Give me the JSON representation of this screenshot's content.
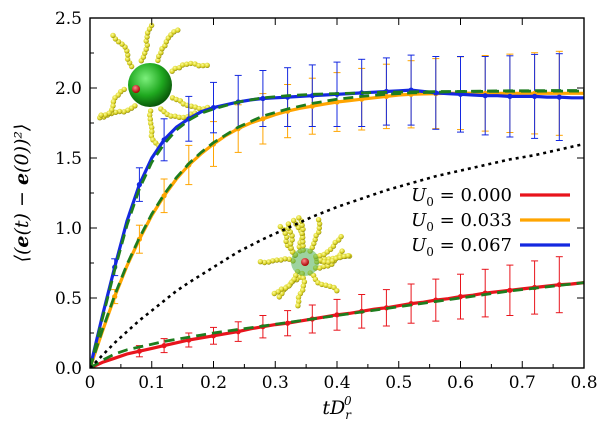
{
  "chart_data": {
    "type": "line",
    "xlabel": "tD_r^0",
    "ylabel": "⟨(e(t) − e(0))²⟩",
    "xlim": [
      0,
      0.8
    ],
    "ylim": [
      0,
      2.5
    ],
    "x_ticks": [
      "0",
      "0.1",
      "0.2",
      "0.3",
      "0.4",
      "0.5",
      "0.6",
      "0.7",
      "0.8"
    ],
    "y_ticks": [
      "0.0",
      "0.5",
      "1.0",
      "1.5",
      "2.0",
      "2.5"
    ],
    "legend_position": "right-middle",
    "series": [
      {
        "name": "U_0 = 0.000",
        "color": "#e8141c",
        "x": [
          0,
          0.02,
          0.04,
          0.06,
          0.08,
          0.1,
          0.12,
          0.14,
          0.16,
          0.18,
          0.2,
          0.22,
          0.24,
          0.26,
          0.28,
          0.3,
          0.32,
          0.34,
          0.36,
          0.38,
          0.4,
          0.42,
          0.44,
          0.46,
          0.48,
          0.5,
          0.52,
          0.54,
          0.56,
          0.58,
          0.6,
          0.62,
          0.64,
          0.66,
          0.68,
          0.7,
          0.72,
          0.74,
          0.76,
          0.78,
          0.8
        ],
        "y": [
          0,
          0.04,
          0.07,
          0.1,
          0.12,
          0.14,
          0.16,
          0.18,
          0.2,
          0.215,
          0.23,
          0.245,
          0.26,
          0.28,
          0.295,
          0.31,
          0.32,
          0.335,
          0.35,
          0.365,
          0.38,
          0.39,
          0.405,
          0.42,
          0.43,
          0.445,
          0.46,
          0.47,
          0.485,
          0.495,
          0.51,
          0.52,
          0.535,
          0.545,
          0.555,
          0.565,
          0.575,
          0.585,
          0.595,
          0.6,
          0.61
        ],
        "errorbars": [
          {
            "x": 0.08,
            "y": 0.12,
            "err": 0.04
          },
          {
            "x": 0.12,
            "y": 0.16,
            "err": 0.05
          },
          {
            "x": 0.16,
            "y": 0.2,
            "err": 0.05
          },
          {
            "x": 0.2,
            "y": 0.23,
            "err": 0.06
          },
          {
            "x": 0.24,
            "y": 0.26,
            "err": 0.07
          },
          {
            "x": 0.28,
            "y": 0.295,
            "err": 0.08
          },
          {
            "x": 0.32,
            "y": 0.32,
            "err": 0.09
          },
          {
            "x": 0.36,
            "y": 0.35,
            "err": 0.1
          },
          {
            "x": 0.4,
            "y": 0.38,
            "err": 0.11
          },
          {
            "x": 0.44,
            "y": 0.405,
            "err": 0.12
          },
          {
            "x": 0.48,
            "y": 0.43,
            "err": 0.13
          },
          {
            "x": 0.52,
            "y": 0.46,
            "err": 0.14
          },
          {
            "x": 0.56,
            "y": 0.485,
            "err": 0.15
          },
          {
            "x": 0.6,
            "y": 0.51,
            "err": 0.16
          },
          {
            "x": 0.64,
            "y": 0.535,
            "err": 0.17
          },
          {
            "x": 0.68,
            "y": 0.555,
            "err": 0.18
          },
          {
            "x": 0.72,
            "y": 0.575,
            "err": 0.19
          },
          {
            "x": 0.76,
            "y": 0.595,
            "err": 0.2
          }
        ]
      },
      {
        "name": "U_0 = 0.033",
        "color": "#ffa500",
        "x": [
          0,
          0.02,
          0.04,
          0.06,
          0.08,
          0.1,
          0.12,
          0.14,
          0.16,
          0.18,
          0.2,
          0.22,
          0.24,
          0.26,
          0.28,
          0.3,
          0.32,
          0.34,
          0.36,
          0.38,
          0.4,
          0.42,
          0.44,
          0.46,
          0.48,
          0.5,
          0.52,
          0.54,
          0.56,
          0.58,
          0.6,
          0.62,
          0.64,
          0.66,
          0.68,
          0.7,
          0.72,
          0.74,
          0.76,
          0.78,
          0.8
        ],
        "y": [
          0,
          0.26,
          0.51,
          0.73,
          0.92,
          1.09,
          1.23,
          1.35,
          1.45,
          1.53,
          1.6,
          1.66,
          1.71,
          1.75,
          1.78,
          1.81,
          1.835,
          1.855,
          1.87,
          1.885,
          1.9,
          1.91,
          1.92,
          1.93,
          1.94,
          1.95,
          1.955,
          1.958,
          1.96,
          1.962,
          1.963,
          1.963,
          1.962,
          1.962,
          1.962,
          1.962,
          1.962,
          1.962,
          1.962,
          1.962,
          1.962
        ],
        "errorbars": [
          {
            "x": 0.04,
            "y": 0.51,
            "err": 0.05
          },
          {
            "x": 0.08,
            "y": 0.92,
            "err": 0.1
          },
          {
            "x": 0.12,
            "y": 1.23,
            "err": 0.12
          },
          {
            "x": 0.16,
            "y": 1.45,
            "err": 0.14
          },
          {
            "x": 0.2,
            "y": 1.6,
            "err": 0.16
          },
          {
            "x": 0.24,
            "y": 1.71,
            "err": 0.17
          },
          {
            "x": 0.28,
            "y": 1.78,
            "err": 0.18
          },
          {
            "x": 0.32,
            "y": 1.835,
            "err": 0.19
          },
          {
            "x": 0.36,
            "y": 1.87,
            "err": 0.2
          },
          {
            "x": 0.4,
            "y": 1.9,
            "err": 0.21
          },
          {
            "x": 0.44,
            "y": 1.92,
            "err": 0.22
          },
          {
            "x": 0.48,
            "y": 1.94,
            "err": 0.23
          },
          {
            "x": 0.52,
            "y": 1.955,
            "err": 0.24
          },
          {
            "x": 0.56,
            "y": 1.96,
            "err": 0.25
          },
          {
            "x": 0.6,
            "y": 1.963,
            "err": 0.26
          },
          {
            "x": 0.64,
            "y": 1.962,
            "err": 0.27
          },
          {
            "x": 0.68,
            "y": 1.962,
            "err": 0.28
          },
          {
            "x": 0.72,
            "y": 1.962,
            "err": 0.29
          },
          {
            "x": 0.76,
            "y": 1.962,
            "err": 0.3
          }
        ]
      },
      {
        "name": "U_0 = 0.067",
        "color": "#1428e0",
        "x": [
          0,
          0.02,
          0.04,
          0.06,
          0.08,
          0.1,
          0.12,
          0.14,
          0.16,
          0.18,
          0.2,
          0.22,
          0.24,
          0.26,
          0.28,
          0.3,
          0.32,
          0.34,
          0.36,
          0.38,
          0.4,
          0.42,
          0.44,
          0.46,
          0.48,
          0.5,
          0.52,
          0.54,
          0.56,
          0.58,
          0.6,
          0.62,
          0.64,
          0.66,
          0.68,
          0.7,
          0.72,
          0.74,
          0.76,
          0.78,
          0.8
        ],
        "y": [
          0,
          0.37,
          0.72,
          1.05,
          1.31,
          1.5,
          1.63,
          1.72,
          1.78,
          1.83,
          1.86,
          1.88,
          1.9,
          1.915,
          1.925,
          1.93,
          1.935,
          1.94,
          1.945,
          1.95,
          1.955,
          1.96,
          1.965,
          1.97,
          1.975,
          1.98,
          1.985,
          1.975,
          1.965,
          1.96,
          1.955,
          1.95,
          1.945,
          1.945,
          1.94,
          1.94,
          1.94,
          1.935,
          1.935,
          1.93,
          1.93
        ],
        "errorbars": [
          {
            "x": 0.04,
            "y": 0.72,
            "err": 0.06
          },
          {
            "x": 0.08,
            "y": 1.31,
            "err": 0.12
          },
          {
            "x": 0.12,
            "y": 1.63,
            "err": 0.15
          },
          {
            "x": 0.16,
            "y": 1.78,
            "err": 0.16
          },
          {
            "x": 0.2,
            "y": 1.86,
            "err": 0.18
          },
          {
            "x": 0.24,
            "y": 1.9,
            "err": 0.19
          },
          {
            "x": 0.28,
            "y": 1.925,
            "err": 0.2
          },
          {
            "x": 0.32,
            "y": 1.935,
            "err": 0.21
          },
          {
            "x": 0.36,
            "y": 1.945,
            "err": 0.22
          },
          {
            "x": 0.4,
            "y": 1.955,
            "err": 0.23
          },
          {
            "x": 0.44,
            "y": 1.965,
            "err": 0.24
          },
          {
            "x": 0.48,
            "y": 1.975,
            "err": 0.24
          },
          {
            "x": 0.52,
            "y": 1.985,
            "err": 0.25
          },
          {
            "x": 0.56,
            "y": 1.965,
            "err": 0.26
          },
          {
            "x": 0.6,
            "y": 1.955,
            "err": 0.27
          },
          {
            "x": 0.64,
            "y": 1.945,
            "err": 0.28
          },
          {
            "x": 0.68,
            "y": 1.94,
            "err": 0.29
          },
          {
            "x": 0.72,
            "y": 1.94,
            "err": 0.3
          },
          {
            "x": 0.76,
            "y": 1.935,
            "err": 0.31
          }
        ]
      }
    ],
    "fits": [
      {
        "style": "dashed",
        "color": "#1e7d1e",
        "x": [
          0,
          0.02,
          0.04,
          0.06,
          0.08,
          0.1,
          0.12,
          0.14,
          0.16,
          0.18,
          0.2,
          0.24,
          0.28,
          0.32,
          0.36,
          0.4,
          0.44,
          0.48,
          0.52,
          0.56,
          0.6,
          0.64,
          0.68,
          0.72,
          0.76,
          0.8
        ],
        "y": [
          0,
          0.055,
          0.1,
          0.13,
          0.15,
          0.17,
          0.19,
          0.205,
          0.22,
          0.235,
          0.25,
          0.275,
          0.3,
          0.325,
          0.35,
          0.375,
          0.4,
          0.425,
          0.45,
          0.475,
          0.5,
          0.525,
          0.55,
          0.57,
          0.59,
          0.61
        ]
      },
      {
        "style": "dashed",
        "color": "#1e7d1e",
        "x": [
          0,
          0.02,
          0.04,
          0.06,
          0.08,
          0.1,
          0.12,
          0.14,
          0.16,
          0.18,
          0.2,
          0.24,
          0.28,
          0.32,
          0.36,
          0.4,
          0.44,
          0.48,
          0.52,
          0.56,
          0.6,
          0.64,
          0.68,
          0.72,
          0.76,
          0.8
        ],
        "y": [
          0,
          0.27,
          0.52,
          0.74,
          0.93,
          1.1,
          1.24,
          1.36,
          1.46,
          1.54,
          1.61,
          1.72,
          1.8,
          1.85,
          1.89,
          1.92,
          1.94,
          1.955,
          1.965,
          1.97,
          1.975,
          1.978,
          1.98,
          1.981,
          1.982,
          1.982
        ]
      },
      {
        "style": "dashed",
        "color": "#1e7d1e",
        "x": [
          0,
          0.02,
          0.04,
          0.06,
          0.08,
          0.1,
          0.12,
          0.14,
          0.16,
          0.18,
          0.2,
          0.24,
          0.28,
          0.32,
          0.36,
          0.4,
          0.44,
          0.48,
          0.52,
          0.56,
          0.6,
          0.64,
          0.68,
          0.72,
          0.76,
          0.8
        ],
        "y": [
          0,
          0.35,
          0.7,
          1.02,
          1.28,
          1.47,
          1.6,
          1.7,
          1.77,
          1.82,
          1.85,
          1.9,
          1.93,
          1.945,
          1.955,
          1.96,
          1.965,
          1.97,
          1.972,
          1.974,
          1.975,
          1.976,
          1.977,
          1.977,
          1.978,
          1.978
        ]
      },
      {
        "style": "dotted",
        "color": "#000000",
        "x": [
          0,
          0.02,
          0.04,
          0.06,
          0.08,
          0.1,
          0.12,
          0.14,
          0.16,
          0.2,
          0.24,
          0.28,
          0.32,
          0.36,
          0.4,
          0.44,
          0.48,
          0.52,
          0.56,
          0.6,
          0.64,
          0.68,
          0.72,
          0.76,
          0.8
        ],
        "y": [
          0,
          0.09,
          0.18,
          0.26,
          0.34,
          0.41,
          0.48,
          0.55,
          0.61,
          0.72,
          0.83,
          0.92,
          1.0,
          1.08,
          1.15,
          1.21,
          1.27,
          1.32,
          1.37,
          1.41,
          1.45,
          1.49,
          1.52,
          1.56,
          1.6
        ]
      }
    ],
    "insets": [
      {
        "name": "polymer-grafted-sphere-active"
      },
      {
        "name": "polymer-grafted-sphere-passive"
      }
    ]
  }
}
